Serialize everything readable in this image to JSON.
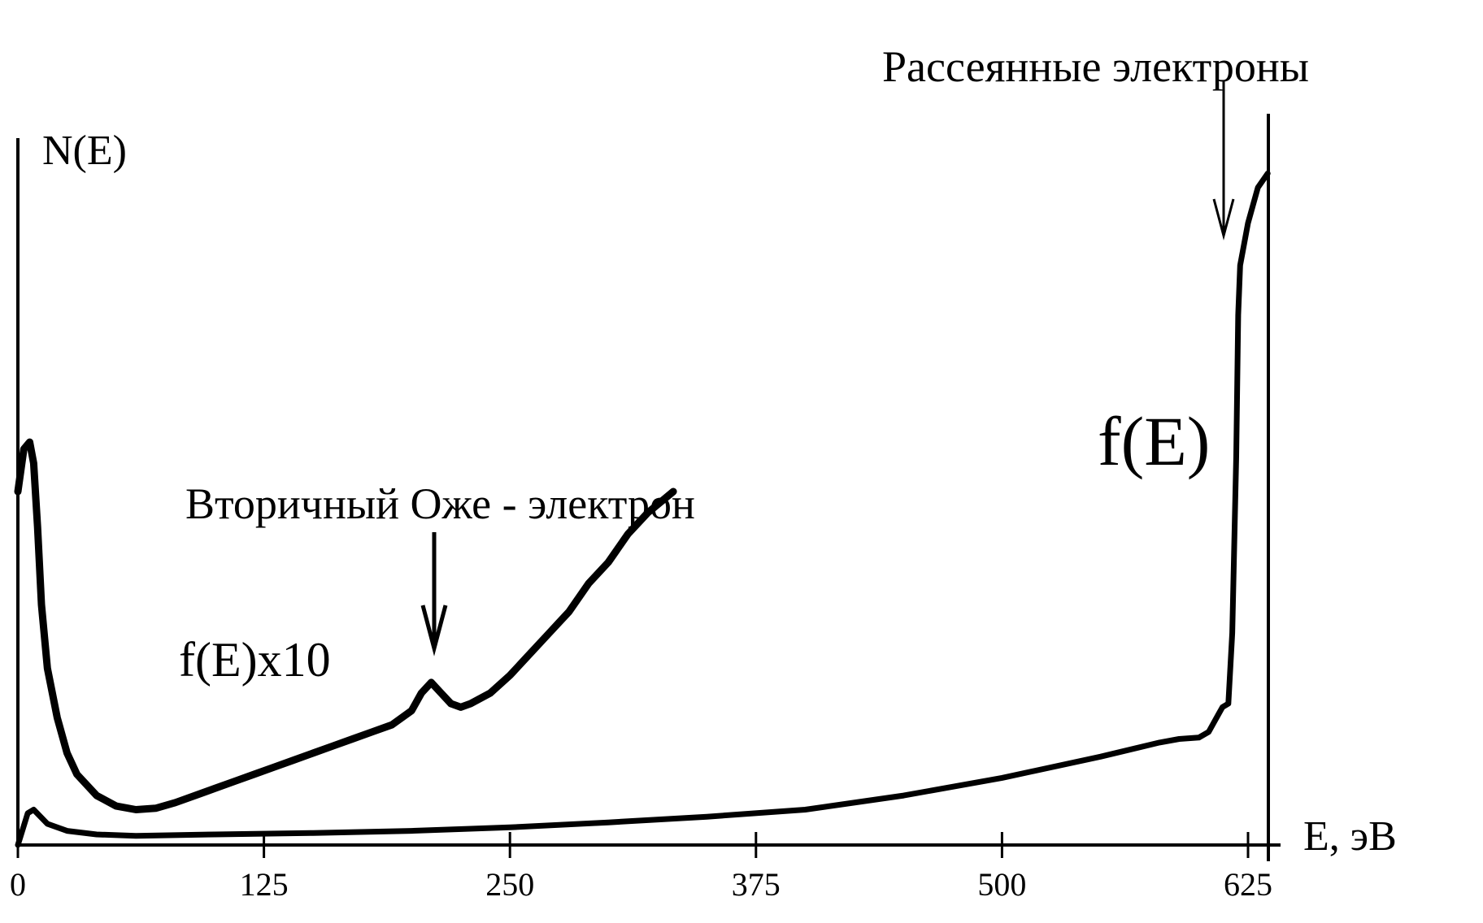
{
  "chart_data": {
    "type": "line",
    "title": "",
    "xlabel": "E, эВ",
    "ylabel": "N(E)",
    "xlim": [
      0,
      640
    ],
    "ylim": [
      0,
      1.0
    ],
    "x_ticks": [
      0,
      125,
      250,
      375,
      500,
      625
    ],
    "x_tick_labels": [
      "0",
      "125",
      "250",
      "375",
      "500",
      "625"
    ],
    "grid": false,
    "series": [
      {
        "name": "f(E)x10",
        "x": [
          0,
          3,
          6,
          8,
          10,
          12,
          15,
          20,
          25,
          30,
          40,
          50,
          60,
          70,
          80,
          90,
          100,
          110,
          120,
          130,
          140,
          150,
          160,
          170,
          180,
          190,
          200,
          205,
          210,
          215,
          220,
          225,
          230,
          240,
          250,
          260,
          270,
          280,
          290,
          300,
          310,
          320,
          333
        ],
        "y": [
          0.5,
          0.56,
          0.57,
          0.54,
          0.45,
          0.34,
          0.25,
          0.18,
          0.13,
          0.1,
          0.07,
          0.055,
          0.05,
          0.052,
          0.06,
          0.07,
          0.08,
          0.09,
          0.1,
          0.11,
          0.12,
          0.13,
          0.14,
          0.15,
          0.16,
          0.17,
          0.19,
          0.215,
          0.23,
          0.215,
          0.2,
          0.195,
          0.2,
          0.215,
          0.24,
          0.27,
          0.3,
          0.33,
          0.37,
          0.4,
          0.44,
          0.47,
          0.5
        ]
      },
      {
        "name": "f(E)",
        "x": [
          0,
          5,
          8,
          15,
          25,
          40,
          60,
          100,
          150,
          200,
          250,
          300,
          350,
          400,
          450,
          500,
          550,
          580,
          590,
          600,
          605,
          610,
          612,
          615,
          617,
          619,
          620,
          621,
          625,
          630,
          635
        ],
        "y": [
          0.0,
          0.045,
          0.05,
          0.03,
          0.02,
          0.015,
          0.013,
          0.015,
          0.017,
          0.02,
          0.025,
          0.032,
          0.04,
          0.05,
          0.07,
          0.095,
          0.125,
          0.145,
          0.15,
          0.152,
          0.16,
          0.185,
          0.195,
          0.2,
          0.3,
          0.55,
          0.75,
          0.82,
          0.88,
          0.93,
          0.95
        ]
      }
    ],
    "annotations": [
      {
        "text": "Вторичный Оже - электрон",
        "x": 205,
        "y": 0.215
      },
      {
        "text": "Рассеянные электроны",
        "x": 612,
        "y": 0.82
      }
    ]
  }
}
